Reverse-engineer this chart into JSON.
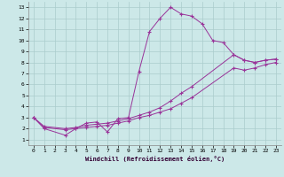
{
  "xlabel": "Windchill (Refroidissement éolien,°C)",
  "background_color": "#cce8e8",
  "grid_color": "#aacccc",
  "line_color": "#993399",
  "xlim": [
    -0.5,
    23.5
  ],
  "ylim": [
    0.5,
    13.5
  ],
  "xticks": [
    0,
    1,
    2,
    3,
    4,
    5,
    6,
    7,
    8,
    9,
    10,
    11,
    12,
    13,
    14,
    15,
    16,
    17,
    18,
    19,
    20,
    21,
    22,
    23
  ],
  "yticks": [
    1,
    2,
    3,
    4,
    5,
    6,
    7,
    8,
    9,
    10,
    11,
    12,
    13
  ],
  "series": [
    {
      "x": [
        0,
        1,
        3,
        4,
        5,
        6,
        7,
        8,
        9,
        10,
        11,
        12,
        13,
        14,
        15,
        16,
        17,
        18,
        19,
        20,
        21,
        22,
        23
      ],
      "y": [
        3,
        2,
        1.4,
        2.0,
        2.5,
        2.6,
        1.7,
        2.9,
        3.0,
        7.2,
        10.8,
        12.0,
        13.0,
        12.4,
        12.2,
        11.5,
        10.0,
        9.8,
        8.7,
        8.2,
        8.0,
        8.2,
        8.3
      ]
    },
    {
      "x": [
        0,
        1,
        3,
        4,
        5,
        6,
        7,
        8,
        9,
        10,
        11,
        12,
        13,
        14,
        15,
        19,
        20,
        21,
        22,
        23
      ],
      "y": [
        3,
        2.2,
        2.0,
        2.1,
        2.3,
        2.4,
        2.5,
        2.7,
        2.9,
        3.2,
        3.5,
        3.9,
        4.5,
        5.2,
        5.8,
        8.7,
        8.2,
        8.0,
        8.2,
        8.3
      ]
    },
    {
      "x": [
        0,
        1,
        3,
        4,
        5,
        6,
        7,
        8,
        9,
        10,
        11,
        12,
        13,
        14,
        15,
        19,
        20,
        21,
        22,
        23
      ],
      "y": [
        3,
        2.1,
        1.9,
        2.0,
        2.1,
        2.2,
        2.3,
        2.5,
        2.7,
        3.0,
        3.2,
        3.5,
        3.8,
        4.3,
        4.8,
        7.5,
        7.3,
        7.5,
        7.8,
        8.0
      ]
    }
  ]
}
